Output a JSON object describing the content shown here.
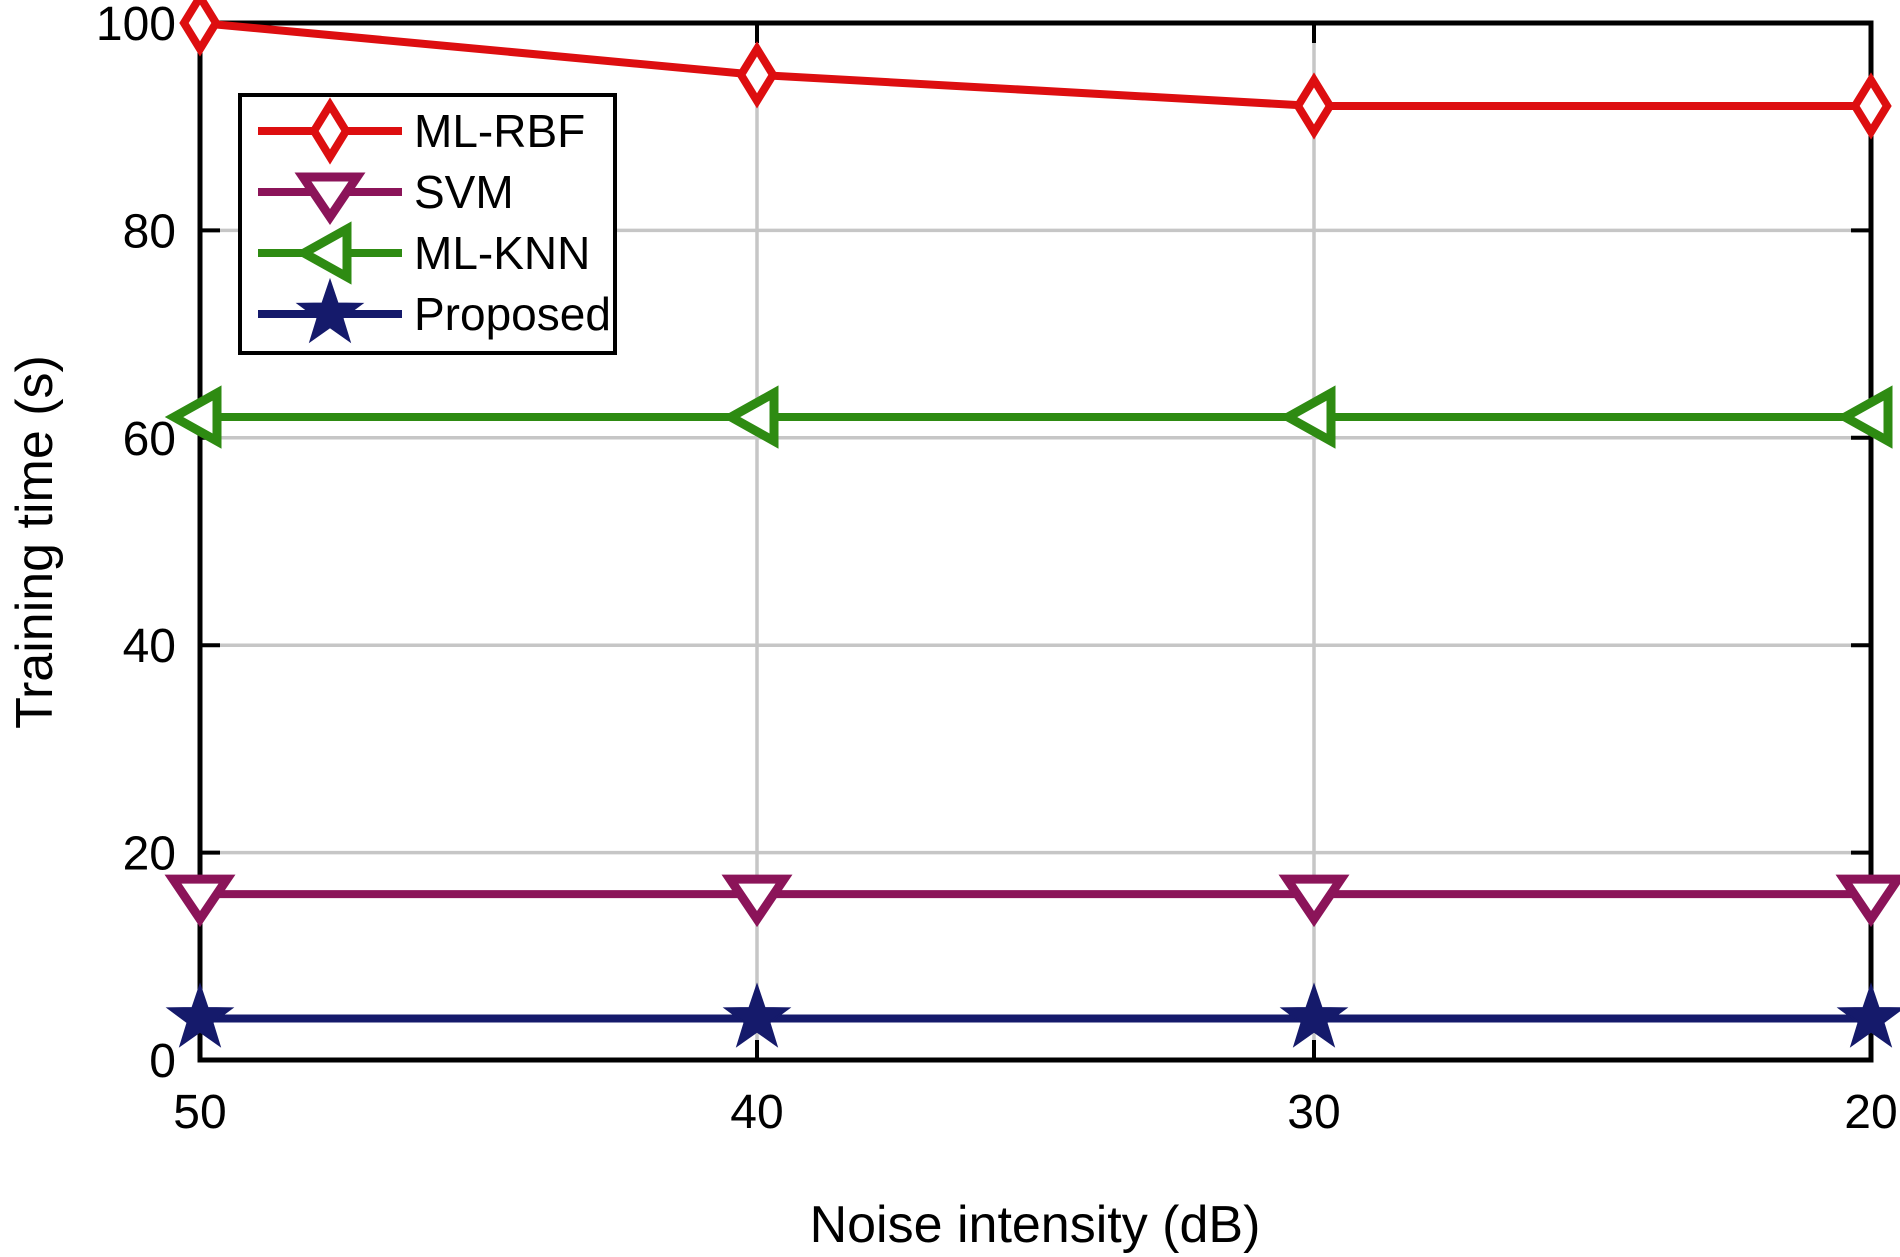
{
  "figure": {
    "background": "#ffffff",
    "axis_color": "#000000",
    "grid_color": "#c6c6c6",
    "text_color": "#000000"
  },
  "chart_data": {
    "type": "line",
    "title": "",
    "xlabel": "Noise intensity (dB)",
    "ylabel": "Training time (s)",
    "x_tick_labels": [
      "50",
      "40",
      "30",
      "20"
    ],
    "x_values": [
      50,
      40,
      30,
      20
    ],
    "y_ticks": [
      0,
      20,
      40,
      60,
      80,
      100
    ],
    "y_tick_labels": [
      "0",
      "20",
      "40",
      "60",
      "80",
      "100"
    ],
    "ylim": [
      0,
      100
    ],
    "grid": true,
    "box": true,
    "legend_position": "upper-left-inside",
    "legend_entries": [
      "ML-RBF",
      "SVM",
      "ML-KNN",
      "Proposed"
    ],
    "series": [
      {
        "name": "ML-RBF",
        "color": "#dd0e10",
        "marker": "diamond",
        "marker_fill": "#ffffff",
        "values": [
          100,
          95,
          92,
          92
        ]
      },
      {
        "name": "SVM",
        "color": "#8b1459",
        "marker": "triangle-down",
        "marker_fill": "#ffffff",
        "values": [
          16,
          16,
          16,
          16
        ]
      },
      {
        "name": "ML-KNN",
        "color": "#2e8b12",
        "marker": "triangle-left",
        "marker_fill": "#ffffff",
        "values": [
          62,
          62,
          62,
          62
        ]
      },
      {
        "name": "Proposed",
        "color": "#151a6b",
        "marker": "star",
        "marker_fill": "#151a6b",
        "values": [
          4,
          4,
          4,
          4
        ]
      }
    ]
  }
}
